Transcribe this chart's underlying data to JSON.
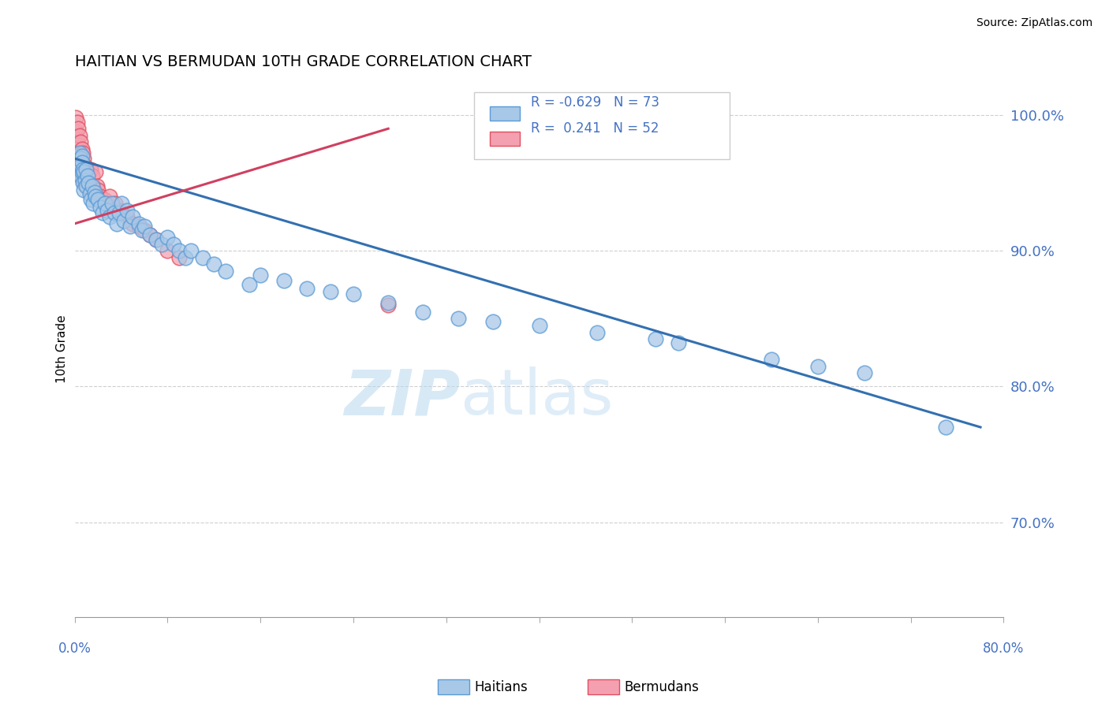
{
  "title": "HAITIAN VS BERMUDAN 10TH GRADE CORRELATION CHART",
  "source": "Source: ZipAtlas.com",
  "ylabel": "10th Grade",
  "xlim": [
    0.0,
    0.8
  ],
  "ylim": [
    0.63,
    1.025
  ],
  "yticks": [
    0.7,
    0.8,
    0.9,
    1.0
  ],
  "ytick_labels": [
    "70.0%",
    "80.0%",
    "90.0%",
    "100.0%"
  ],
  "legend_r_haitian": "-0.629",
  "legend_n_haitian": "73",
  "legend_r_bermudan": "0.241",
  "legend_n_bermudan": "52",
  "haitian_fill": "#a8c8e8",
  "haitian_edge": "#5b9bd5",
  "bermudan_fill": "#f4a0b0",
  "bermudan_edge": "#e05060",
  "blue_line_color": "#3370b0",
  "pink_line_color": "#d04060",
  "haitian_x": [
    0.002,
    0.003,
    0.003,
    0.004,
    0.004,
    0.005,
    0.005,
    0.005,
    0.006,
    0.006,
    0.006,
    0.007,
    0.007,
    0.008,
    0.008,
    0.009,
    0.01,
    0.01,
    0.011,
    0.012,
    0.013,
    0.014,
    0.015,
    0.016,
    0.017,
    0.018,
    0.02,
    0.022,
    0.024,
    0.026,
    0.028,
    0.03,
    0.032,
    0.034,
    0.036,
    0.038,
    0.04,
    0.042,
    0.045,
    0.048,
    0.05,
    0.055,
    0.058,
    0.06,
    0.065,
    0.07,
    0.075,
    0.08,
    0.085,
    0.09,
    0.095,
    0.1,
    0.11,
    0.12,
    0.13,
    0.15,
    0.16,
    0.18,
    0.2,
    0.22,
    0.24,
    0.27,
    0.3,
    0.33,
    0.36,
    0.4,
    0.45,
    0.5,
    0.52,
    0.6,
    0.64,
    0.68,
    0.75
  ],
  "haitian_y": [
    0.97,
    0.965,
    0.958,
    0.972,
    0.96,
    0.968,
    0.955,
    0.962,
    0.97,
    0.958,
    0.965,
    0.96,
    0.95,
    0.958,
    0.945,
    0.952,
    0.96,
    0.948,
    0.955,
    0.95,
    0.942,
    0.938,
    0.948,
    0.935,
    0.943,
    0.94,
    0.938,
    0.932,
    0.928,
    0.935,
    0.93,
    0.925,
    0.935,
    0.928,
    0.92,
    0.928,
    0.935,
    0.922,
    0.93,
    0.918,
    0.925,
    0.92,
    0.915,
    0.918,
    0.912,
    0.908,
    0.905,
    0.91,
    0.905,
    0.9,
    0.895,
    0.9,
    0.895,
    0.89,
    0.885,
    0.875,
    0.882,
    0.878,
    0.872,
    0.87,
    0.868,
    0.862,
    0.855,
    0.85,
    0.848,
    0.845,
    0.84,
    0.835,
    0.832,
    0.82,
    0.815,
    0.81,
    0.77
  ],
  "bermudan_x": [
    0.001,
    0.001,
    0.002,
    0.002,
    0.002,
    0.003,
    0.003,
    0.003,
    0.004,
    0.004,
    0.004,
    0.005,
    0.005,
    0.005,
    0.006,
    0.006,
    0.007,
    0.007,
    0.007,
    0.008,
    0.008,
    0.009,
    0.009,
    0.01,
    0.01,
    0.011,
    0.012,
    0.013,
    0.014,
    0.015,
    0.016,
    0.017,
    0.018,
    0.019,
    0.02,
    0.022,
    0.025,
    0.028,
    0.03,
    0.033,
    0.035,
    0.038,
    0.04,
    0.045,
    0.05,
    0.055,
    0.06,
    0.065,
    0.07,
    0.08,
    0.09,
    0.27
  ],
  "bermudan_y": [
    0.998,
    0.988,
    0.995,
    0.982,
    0.975,
    0.99,
    0.978,
    0.968,
    0.985,
    0.972,
    0.962,
    0.98,
    0.968,
    0.958,
    0.975,
    0.965,
    0.972,
    0.96,
    0.952,
    0.968,
    0.958,
    0.962,
    0.952,
    0.958,
    0.948,
    0.955,
    0.95,
    0.945,
    0.96,
    0.955,
    0.948,
    0.942,
    0.958,
    0.948,
    0.945,
    0.94,
    0.938,
    0.935,
    0.94,
    0.932,
    0.935,
    0.93,
    0.928,
    0.925,
    0.92,
    0.918,
    0.915,
    0.912,
    0.908,
    0.9,
    0.895,
    0.86
  ],
  "haitian_trendline_x": [
    0.0,
    0.78
  ],
  "haitian_trendline_y": [
    0.968,
    0.77
  ],
  "bermudan_trendline_x": [
    0.0,
    0.27
  ],
  "bermudan_trendline_y": [
    0.92,
    0.99
  ]
}
